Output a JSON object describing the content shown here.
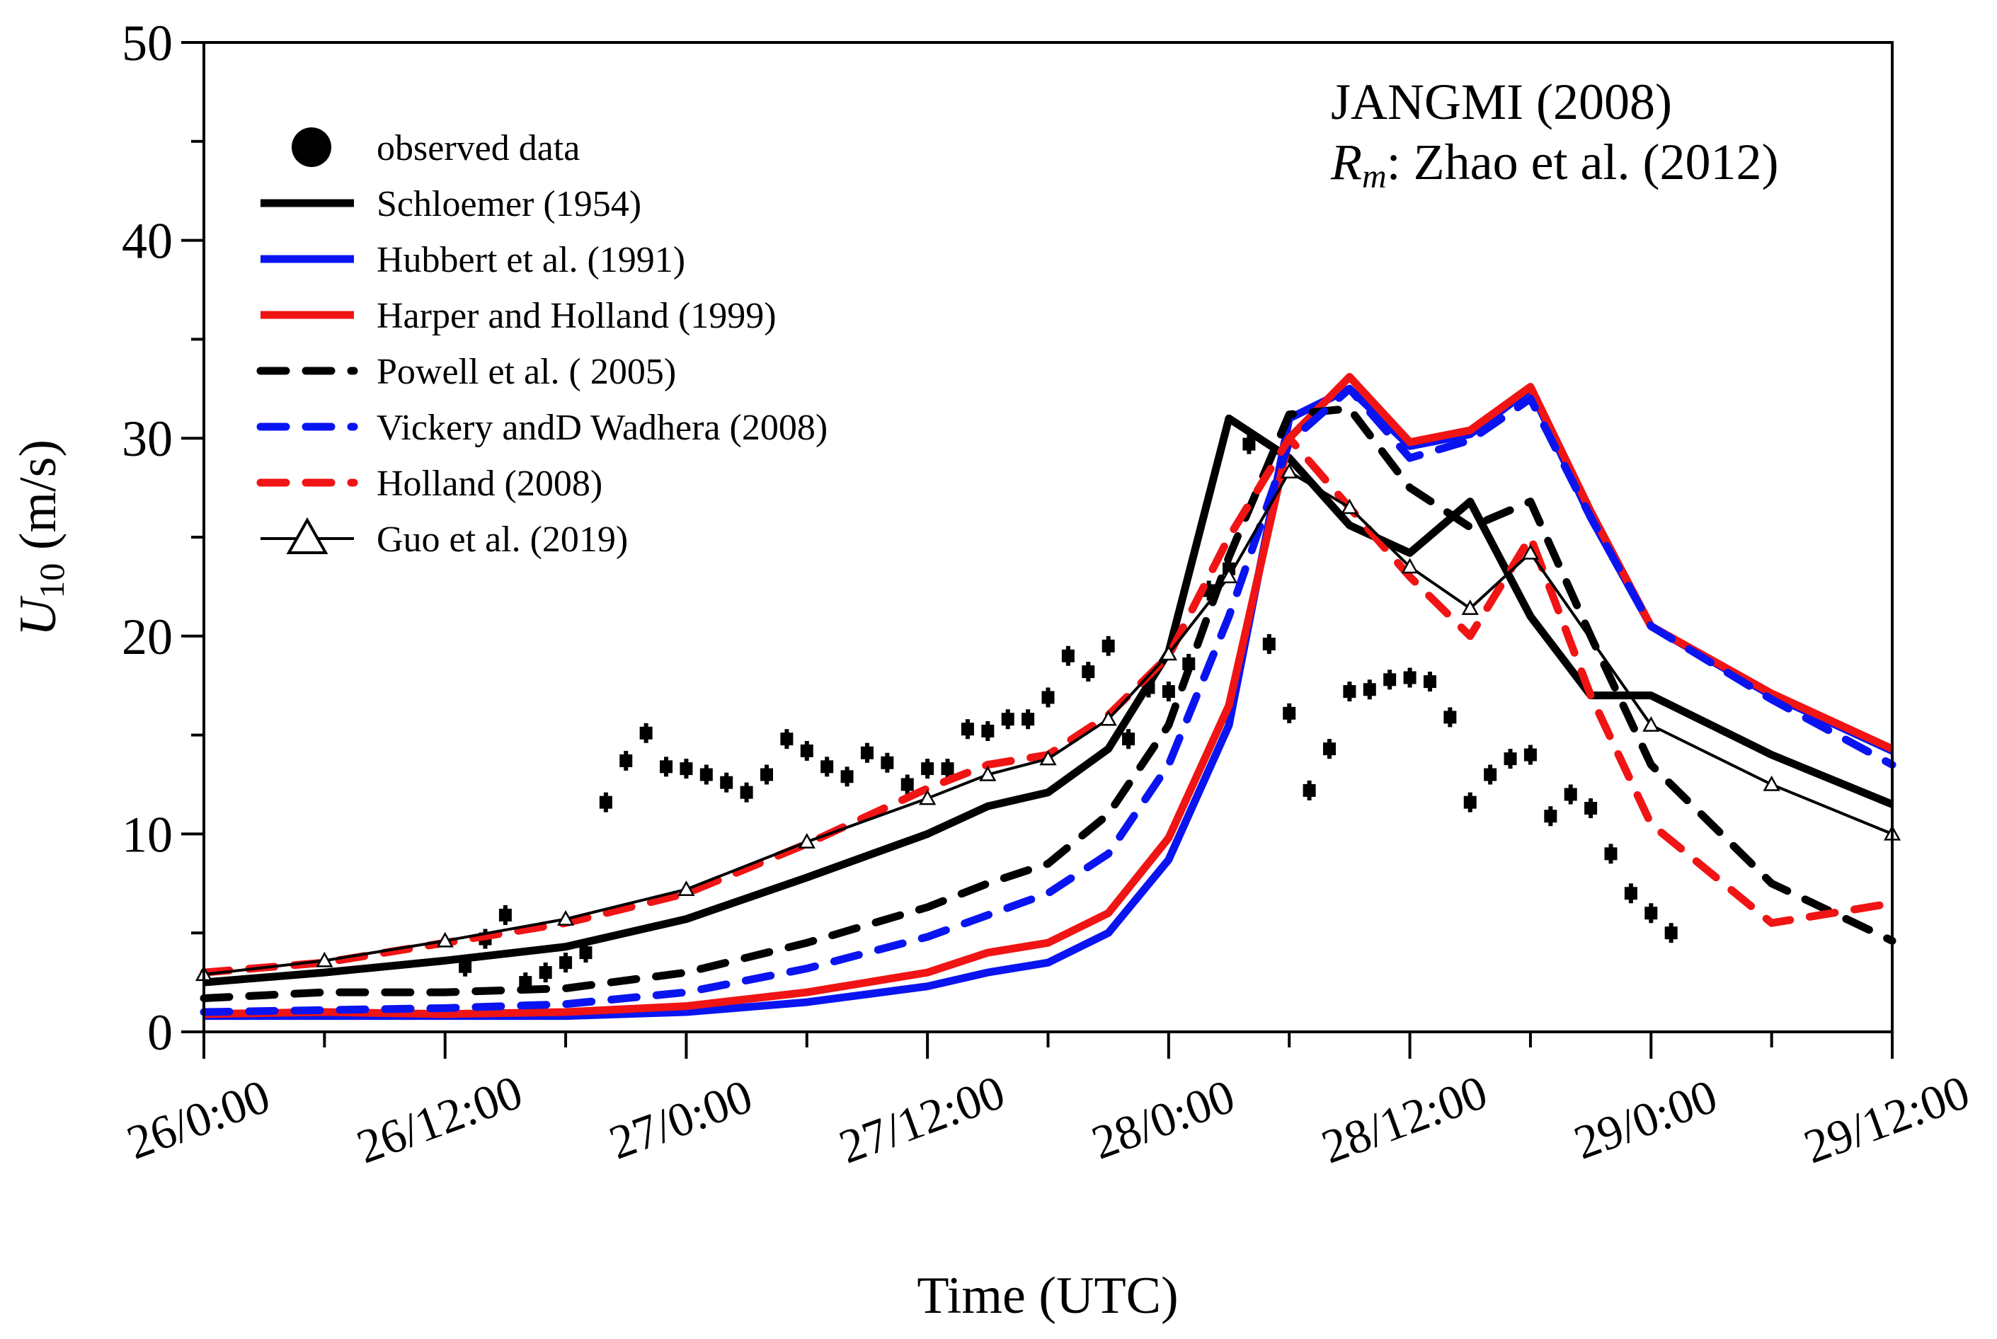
{
  "chart_data": {
    "type": "line",
    "annotation": {
      "title": "JANGMI (2008)",
      "rm_symbol": "R",
      "rm_subscript": "m",
      "rm_text": ": Zhao et al. (2012)"
    },
    "xlabel": "Time (UTC)",
    "ylabel": {
      "symbol": "U",
      "subscript": "10",
      "unit": " (m/s)"
    },
    "x_range_hours": [
      0,
      84
    ],
    "x_tick_hours": [
      0,
      12,
      24,
      36,
      48,
      60,
      72,
      84
    ],
    "x_tick_labels": [
      "26/0:00",
      "26/12:00",
      "27/0:00",
      "27/12:00",
      "28/0:00",
      "28/12:00",
      "29/0:00",
      "29/12:00"
    ],
    "ylim": [
      0,
      50
    ],
    "y_ticks": [
      0,
      10,
      20,
      30,
      40,
      50
    ],
    "y_tick_labels": [
      "0",
      "10",
      "20",
      "30",
      "40",
      "50"
    ],
    "legend_position": "top-left",
    "series": [
      {
        "name": "observed data",
        "style": "points",
        "color": "#000000",
        "x": [
          20,
          21,
          22,
          23,
          24,
          25,
          26,
          27,
          28,
          29,
          30,
          31,
          32,
          33,
          34,
          35,
          36,
          37,
          38,
          39,
          40,
          41,
          42,
          43,
          44,
          45,
          46,
          47,
          48,
          49,
          50,
          51,
          52,
          53,
          54,
          55,
          56,
          57,
          58,
          59,
          60,
          61,
          62,
          63,
          64,
          65,
          66,
          67,
          68,
          69,
          70,
          71,
          72,
          73,
          13,
          14,
          15,
          16,
          17,
          18,
          19
        ],
        "y": [
          11.6,
          13.7,
          15.1,
          13.4,
          13.3,
          13.0,
          12.6,
          12.1,
          13.0,
          14.8,
          14.2,
          13.4,
          12.9,
          14.1,
          13.6,
          12.5,
          13.3,
          13.3,
          15.3,
          15.2,
          15.8,
          15.8,
          16.9,
          19.0,
          18.2,
          19.5,
          14.8,
          17.4,
          17.2,
          18.6,
          22.3,
          23.4,
          29.7,
          19.6,
          16.1,
          12.2,
          14.3,
          17.2,
          17.3,
          17.8,
          17.9,
          17.7,
          15.9,
          11.6,
          13.0,
          13.8,
          14.0,
          10.9,
          12.0,
          11.3,
          9.0,
          7.0,
          6.0,
          5.0,
          3.3,
          4.7,
          5.9,
          2.5,
          3.0,
          3.5,
          4.0
        ]
      },
      {
        "name": "Schloemer (1954)",
        "style": "solid",
        "weight": "thick",
        "color": "#000000",
        "x": [
          0,
          6,
          12,
          18,
          24,
          30,
          36,
          39,
          42,
          45,
          48,
          51,
          54,
          57,
          60,
          63,
          66,
          69,
          72,
          78,
          84
        ],
        "y": [
          2.5,
          3.0,
          3.6,
          4.3,
          5.7,
          7.8,
          10.0,
          11.4,
          12.1,
          14.3,
          19.2,
          31.0,
          29.0,
          25.6,
          24.2,
          26.8,
          21.0,
          17.0,
          17.0,
          14.0,
          11.5
        ]
      },
      {
        "name": "Hubbert et al. (1991)",
        "style": "solid",
        "weight": "thick",
        "color": "#0a14f0",
        "x": [
          0,
          6,
          12,
          18,
          24,
          30,
          36,
          39,
          42,
          45,
          48,
          51,
          54,
          57,
          60,
          63,
          66,
          69,
          72,
          78,
          84
        ],
        "y": [
          0.8,
          0.8,
          0.8,
          0.8,
          1.0,
          1.5,
          2.3,
          3.0,
          3.5,
          5.0,
          8.7,
          15.5,
          31.0,
          32.5,
          29.6,
          30.2,
          32.5,
          26.0,
          20.5,
          17.0,
          14.2
        ]
      },
      {
        "name": "Harper and Holland (1999)",
        "style": "solid",
        "weight": "thick",
        "color": "#f01414",
        "x": [
          0,
          6,
          12,
          18,
          24,
          30,
          36,
          39,
          42,
          45,
          48,
          51,
          54,
          57,
          60,
          63,
          66,
          69,
          72,
          78,
          84
        ],
        "y": [
          0.9,
          1.0,
          0.9,
          1.0,
          1.3,
          2.0,
          3.0,
          4.0,
          4.5,
          6.0,
          9.8,
          16.5,
          30.0,
          33.1,
          29.8,
          30.4,
          32.6,
          26.3,
          20.5,
          17.1,
          14.3
        ]
      },
      {
        "name": "Powell et al. ( 2005)",
        "style": "dashed",
        "weight": "thick",
        "color": "#000000",
        "x": [
          0,
          6,
          12,
          18,
          24,
          30,
          36,
          39,
          42,
          45,
          48,
          51,
          54,
          57,
          60,
          63,
          66,
          69,
          72,
          78,
          84
        ],
        "y": [
          1.7,
          2.0,
          2.0,
          2.2,
          3.0,
          4.5,
          6.3,
          7.5,
          8.5,
          11.0,
          15.5,
          24.0,
          31.2,
          31.5,
          27.5,
          25.5,
          26.8,
          20.0,
          13.5,
          7.5,
          4.6
        ]
      },
      {
        "name": "Vickery andD Wadhera (2008)",
        "style": "dashed",
        "weight": "thick",
        "color": "#0a14f0",
        "x": [
          0,
          6,
          12,
          18,
          24,
          30,
          36,
          39,
          42,
          45,
          48,
          51,
          54,
          57,
          60,
          63,
          66,
          69,
          72,
          78,
          84
        ],
        "y": [
          1.0,
          1.1,
          1.2,
          1.4,
          2.0,
          3.2,
          4.8,
          5.9,
          7.0,
          9.0,
          13.5,
          21.0,
          29.8,
          32.5,
          29.0,
          29.9,
          32.0,
          26.0,
          20.5,
          16.8,
          13.5
        ]
      },
      {
        "name": "Holland (2008)",
        "style": "dashed",
        "weight": "thick",
        "color": "#f01414",
        "x": [
          0,
          6,
          12,
          18,
          24,
          30,
          36,
          39,
          42,
          45,
          48,
          51,
          54,
          57,
          60,
          63,
          66,
          69,
          72,
          78,
          84
        ],
        "y": [
          3.0,
          3.5,
          4.5,
          5.5,
          7.0,
          9.5,
          12.3,
          13.5,
          14.0,
          16.0,
          19.0,
          25.0,
          30.0,
          26.5,
          23.0,
          20.0,
          25.0,
          17.0,
          10.5,
          5.5,
          6.5
        ]
      },
      {
        "name": "Guo et al. (2019)",
        "style": "solid",
        "weight": "thin",
        "marker": "triangle",
        "color": "#000000",
        "x": [
          0,
          6,
          12,
          18,
          24,
          30,
          36,
          39,
          42,
          45,
          48,
          51,
          54,
          57,
          60,
          63,
          66,
          72,
          78,
          84
        ],
        "y": [
          2.9,
          3.6,
          4.6,
          5.7,
          7.2,
          9.6,
          11.8,
          13.0,
          13.8,
          15.8,
          19.1,
          23.0,
          28.3,
          26.5,
          23.5,
          21.4,
          24.2,
          15.5,
          12.5,
          10.0
        ]
      }
    ]
  }
}
